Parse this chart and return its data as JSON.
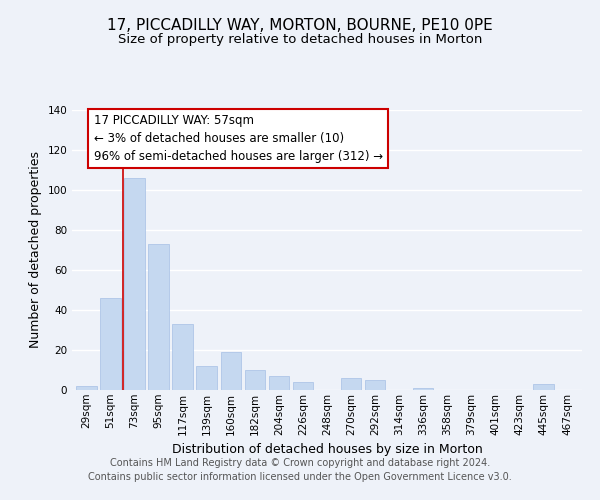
{
  "title": "17, PICCADILLY WAY, MORTON, BOURNE, PE10 0PE",
  "subtitle": "Size of property relative to detached houses in Morton",
  "xlabel": "Distribution of detached houses by size in Morton",
  "ylabel": "Number of detached properties",
  "bar_color": "#c5d8f0",
  "bar_edgecolor": "#aec6e8",
  "categories": [
    "29sqm",
    "51sqm",
    "73sqm",
    "95sqm",
    "117sqm",
    "139sqm",
    "160sqm",
    "182sqm",
    "204sqm",
    "226sqm",
    "248sqm",
    "270sqm",
    "292sqm",
    "314sqm",
    "336sqm",
    "358sqm",
    "379sqm",
    "401sqm",
    "423sqm",
    "445sqm",
    "467sqm"
  ],
  "values": [
    2,
    46,
    106,
    73,
    33,
    12,
    19,
    10,
    7,
    4,
    0,
    6,
    5,
    0,
    1,
    0,
    0,
    0,
    0,
    3,
    0
  ],
  "ylim": [
    0,
    140
  ],
  "yticks": [
    0,
    20,
    40,
    60,
    80,
    100,
    120,
    140
  ],
  "annotation_box_text": "17 PICCADILLY WAY: 57sqm\n← 3% of detached houses are smaller (10)\n96% of semi-detached houses are larger (312) →",
  "annotation_box_color": "#ffffff",
  "annotation_box_edgecolor": "#cc0000",
  "redline_color": "#cc0000",
  "footer_line1": "Contains HM Land Registry data © Crown copyright and database right 2024.",
  "footer_line2": "Contains public sector information licensed under the Open Government Licence v3.0.",
  "background_color": "#eef2f9",
  "grid_color": "#ffffff",
  "title_fontsize": 11,
  "subtitle_fontsize": 9.5,
  "axis_label_fontsize": 9,
  "tick_fontsize": 7.5,
  "annotation_fontsize": 8.5,
  "footer_fontsize": 7
}
